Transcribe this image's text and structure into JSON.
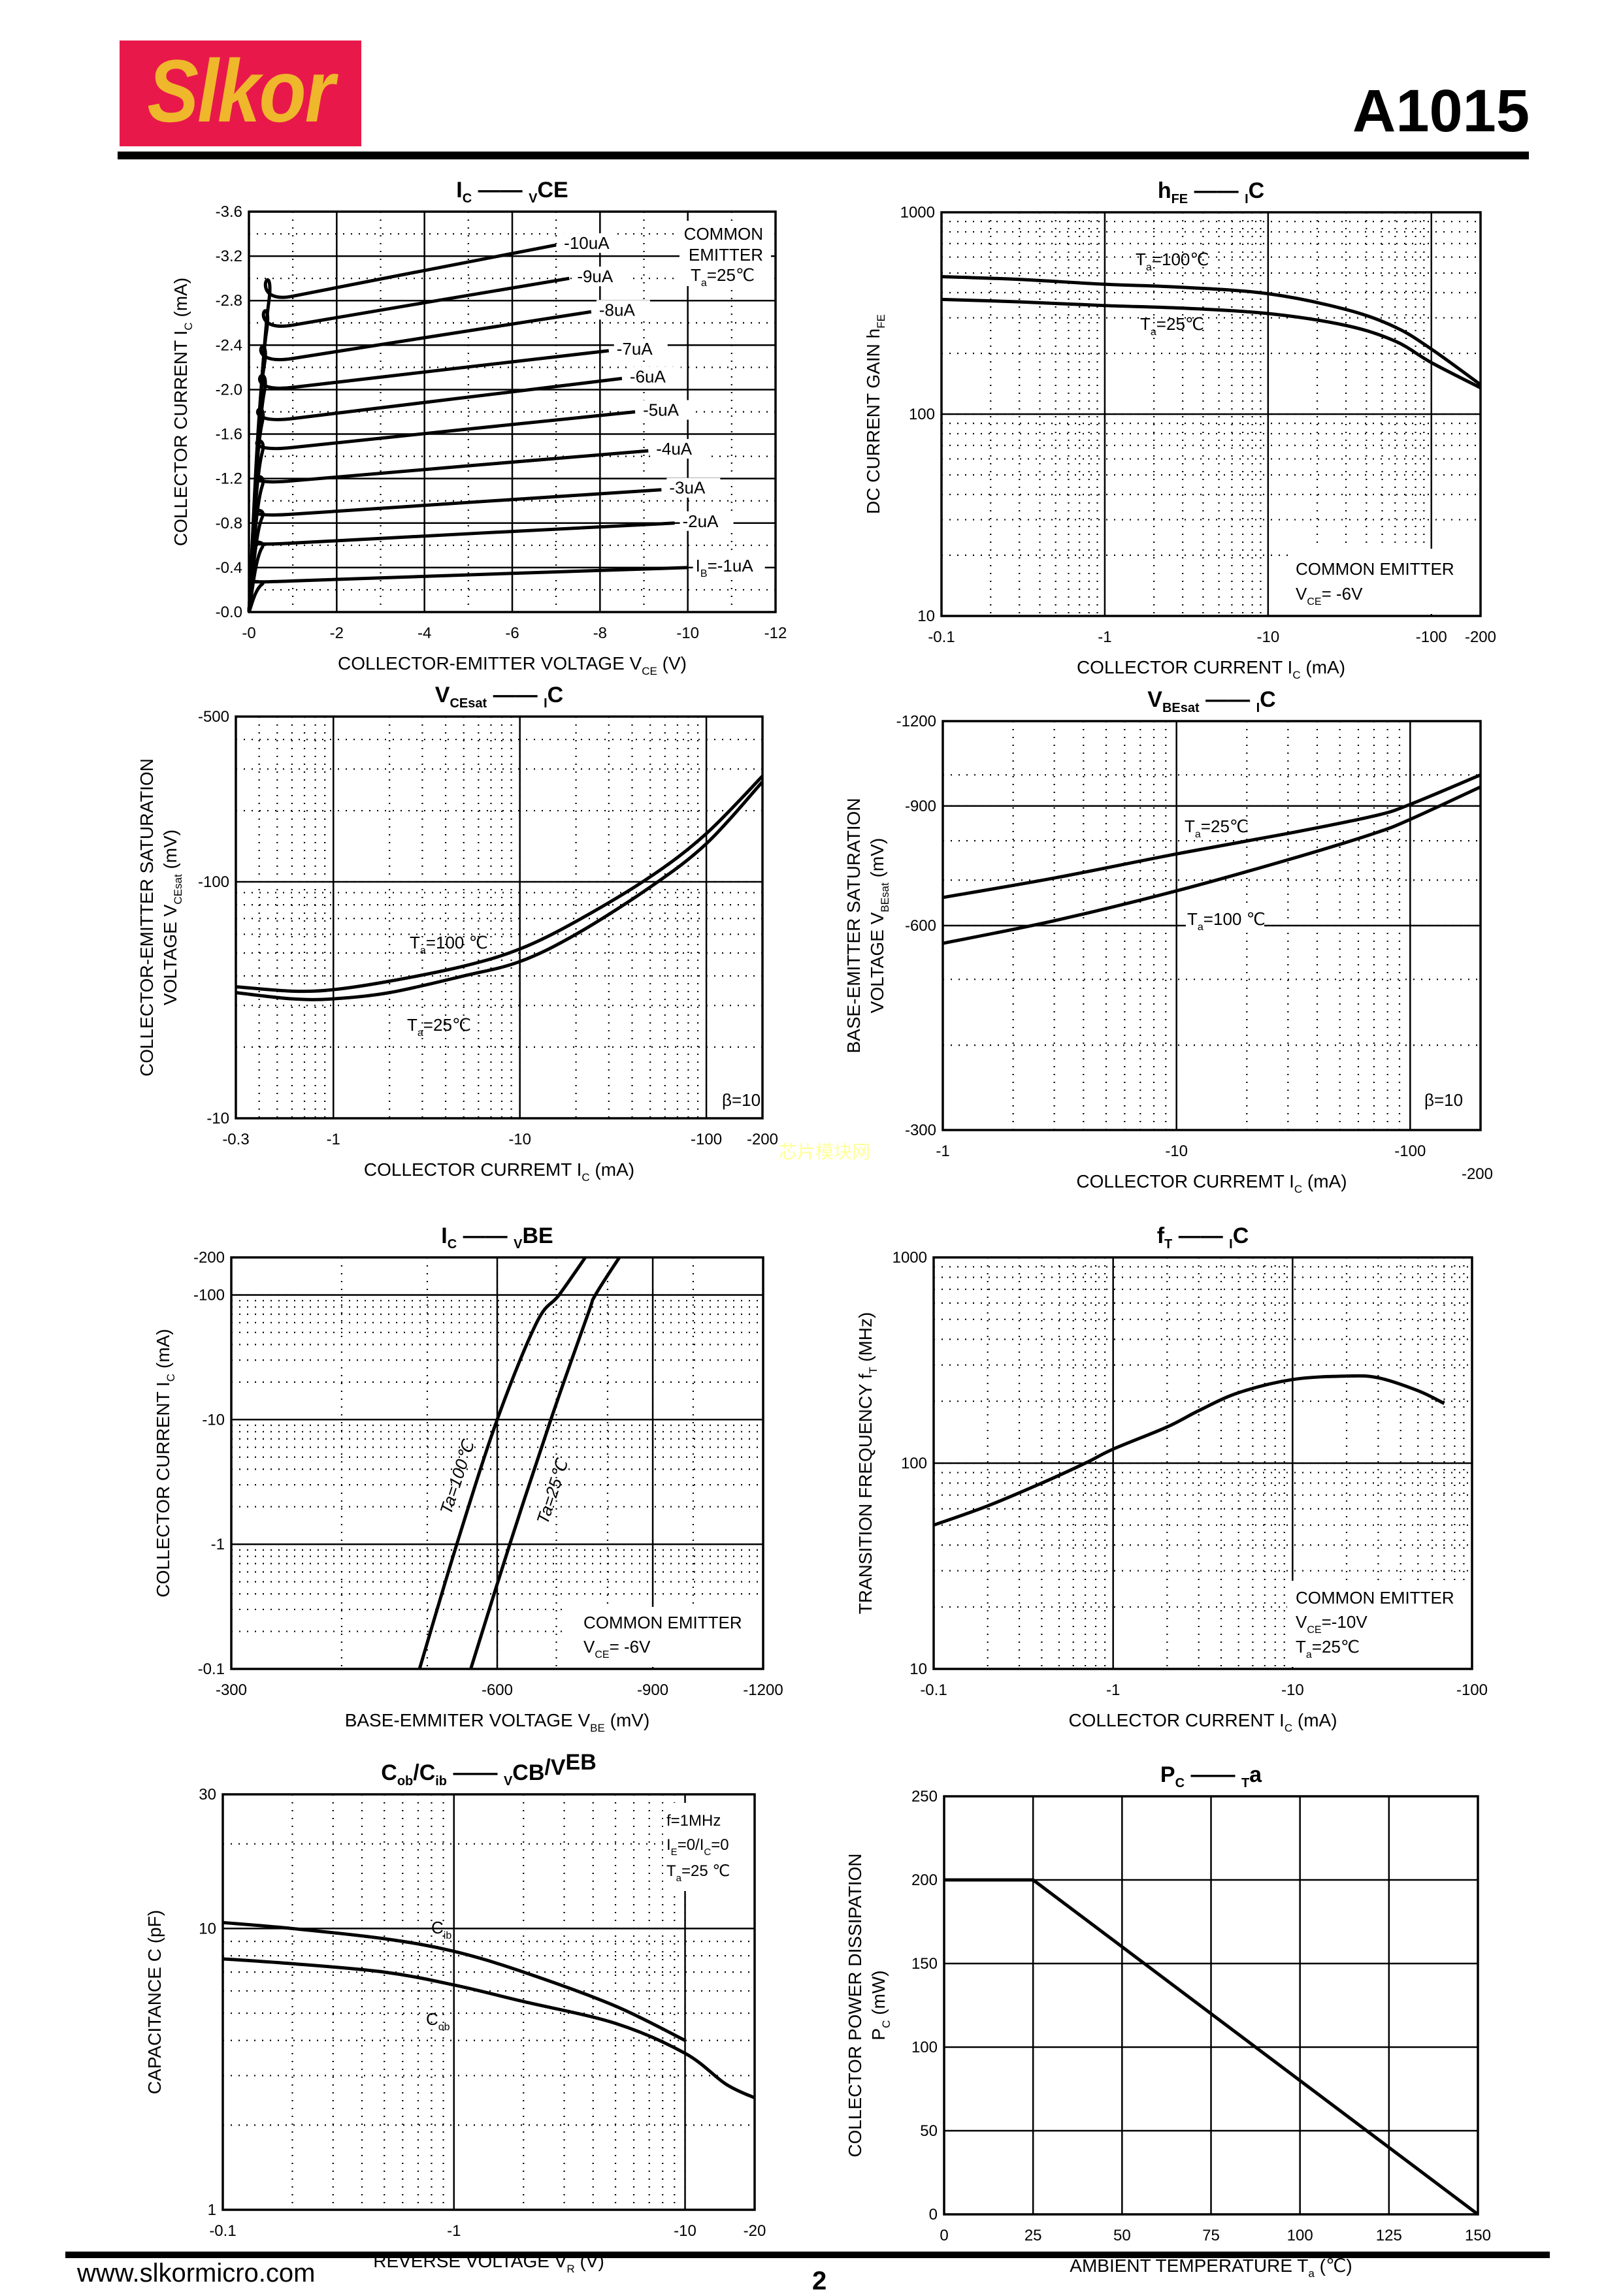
{
  "header": {
    "logo_text": "Slkor",
    "part_number": "A1015"
  },
  "footer": {
    "url": "www.slkormicro.com",
    "page": "2"
  },
  "watermark": "芯片模块网",
  "colors": {
    "logo_bg": "#e8194a",
    "logo_text": "#efb72c",
    "watermark": "#ffff99"
  },
  "chart_data": [
    {
      "id": "ic-vce",
      "type": "line",
      "title": [
        "I",
        "C",
        " —— ",
        "V",
        "CE"
      ],
      "xlabel": "COLLECTOR-EMITTER VOLTAGE    V",
      "xlabel_sub": "CE",
      "xlabel_unit": "(V)",
      "ylabel": "COLLECTOR CURRENT    I",
      "ylabel_sub": "C",
      "ylabel_unit": "(mA)",
      "xscale": "linear",
      "yscale": "linear",
      "xlim": [
        0,
        -12
      ],
      "ylim": [
        0,
        -3.6
      ],
      "xticks": [
        0,
        -2,
        -4,
        -6,
        -8,
        -10,
        -12
      ],
      "xtick_labels": [
        "-0",
        "-2",
        "-4",
        "-6",
        "-8",
        "-10",
        "-12"
      ],
      "yticks": [
        0,
        -0.4,
        -0.8,
        -1.2,
        -1.6,
        -2.0,
        -2.4,
        -2.8,
        -3.2,
        -3.6
      ],
      "ytick_labels": [
        "-0.0",
        "-0.4",
        "-0.8",
        "-1.2",
        "-1.6",
        "-2.0",
        "-2.4",
        "-2.8",
        "-3.2",
        "-3.6"
      ],
      "annotations": [
        "COMMON",
        "EMITTER",
        "T_a=25℃"
      ],
      "series": [
        {
          "name": "I_B=-1uA",
          "label": "-1uA",
          "x": [
            0,
            -0.3,
            -1,
            -10
          ],
          "y": [
            0,
            -0.25,
            -0.28,
            -0.4
          ]
        },
        {
          "name": "-2uA",
          "label": "-2uA",
          "x": [
            0,
            -0.3,
            -1,
            -9.7
          ],
          "y": [
            0,
            -0.58,
            -0.62,
            -0.8
          ]
        },
        {
          "name": "-3uA",
          "label": "-3uA",
          "x": [
            0,
            -0.3,
            -1,
            -9.4
          ],
          "y": [
            0,
            -0.85,
            -0.88,
            -1.1
          ]
        },
        {
          "name": "-4uA",
          "label": "-4uA",
          "x": [
            0,
            -0.3,
            -1,
            -9.1
          ],
          "y": [
            0,
            -1.13,
            -1.18,
            -1.45
          ]
        },
        {
          "name": "-5uA",
          "label": "-5uA",
          "x": [
            0,
            -0.3,
            -1,
            -8.8
          ],
          "y": [
            0,
            -1.43,
            -1.48,
            -1.8
          ]
        },
        {
          "name": "-6uA",
          "label": "-6uA",
          "x": [
            0,
            -0.3,
            -1,
            -8.5
          ],
          "y": [
            0,
            -1.7,
            -1.74,
            -2.1
          ]
        },
        {
          "name": "-7uA",
          "label": "-7uA",
          "x": [
            0,
            -0.35,
            -1,
            -8.2
          ],
          "y": [
            0,
            -1.98,
            -2.02,
            -2.35
          ]
        },
        {
          "name": "-8uA",
          "label": "-8uA",
          "x": [
            0,
            -0.35,
            -1,
            -7.8
          ],
          "y": [
            0,
            -2.22,
            -2.28,
            -2.7
          ]
        },
        {
          "name": "-9uA",
          "label": "-9uA",
          "x": [
            0,
            -0.4,
            -1,
            -7.3
          ],
          "y": [
            0,
            -2.52,
            -2.58,
            -3.0
          ]
        },
        {
          "name": "-10uA",
          "label": "-10uA",
          "x": [
            0,
            -0.45,
            -1,
            -7.0
          ],
          "y": [
            0,
            -2.78,
            -2.84,
            -3.3
          ]
        }
      ],
      "ib_prefix": "I",
      "ib_sub": "B"
    },
    {
      "id": "hfe-ic",
      "type": "line",
      "title": [
        "h",
        "FE",
        " —— ",
        "I",
        "C"
      ],
      "xlabel": "COLLECTOR CURRENT    I",
      "xlabel_sub": "C",
      "xlabel_unit": "(mA)",
      "ylabel": "DC CURRENT GAIN    h",
      "ylabel_sub": "FE",
      "ylabel_unit": "",
      "xscale": "log",
      "yscale": "log",
      "xlim": [
        0.1,
        200
      ],
      "ylim": [
        10,
        1000
      ],
      "xticks": [
        0.1,
        1,
        10,
        100,
        200
      ],
      "xtick_labels": [
        "-0.1",
        "-1",
        "-10",
        "-100",
        "-200"
      ],
      "yticks": [
        10,
        100,
        1000
      ],
      "ytick_labels": [
        "10",
        "100",
        "1000"
      ],
      "annotations": [
        "COMMON EMITTER",
        "V_CE= -6V"
      ],
      "series": [
        {
          "name": "T_a=100℃",
          "x": [
            0.1,
            0.3,
            1,
            3,
            10,
            30,
            60,
            100,
            200
          ],
          "y": [
            480,
            465,
            440,
            425,
            395,
            330,
            270,
            210,
            140
          ]
        },
        {
          "name": "T_a=25℃",
          "x": [
            0.1,
            0.3,
            1,
            3,
            10,
            30,
            60,
            100,
            200
          ],
          "y": [
            370,
            360,
            345,
            335,
            315,
            275,
            230,
            180,
            135
          ]
        }
      ]
    },
    {
      "id": "vcesat-ic",
      "type": "line",
      "title": [
        "V",
        "CEsat",
        " —— ",
        "I",
        "C"
      ],
      "xlabel": "COLLECTOR CURREMT    I",
      "xlabel_sub": "C",
      "xlabel_unit": "(mA)",
      "ylabel": "COLLECTOR-EMITTER SATURATION",
      "ylabel2": "VOLTAGE    V",
      "ylabel_sub": "CEsat",
      "ylabel_unit": "(mV)",
      "xscale": "log",
      "yscale": "log",
      "xlim": [
        0.3,
        200
      ],
      "ylim": [
        10,
        500
      ],
      "xticks": [
        0.3,
        1,
        10,
        100,
        200
      ],
      "xtick_labels": [
        "-0.3",
        "-1",
        "-10",
        "-100",
        "-200"
      ],
      "yticks": [
        10,
        100,
        500
      ],
      "ytick_labels": [
        "-10",
        "-100",
        "-500"
      ],
      "annotations": [
        "β=10"
      ],
      "series": [
        {
          "name": "T_a=100 ℃",
          "x": [
            0.3,
            0.6,
            1,
            2,
            5,
            10,
            20,
            50,
            100,
            200
          ],
          "y": [
            36,
            34.5,
            35,
            38,
            44,
            52,
            68,
            105,
            160,
            280
          ]
        },
        {
          "name": "T_a=25℃",
          "x": [
            0.3,
            0.6,
            1,
            2,
            5,
            10,
            20,
            50,
            100,
            200
          ],
          "y": [
            34,
            32,
            32,
            34,
            40,
            46,
            60,
            95,
            145,
            265
          ]
        }
      ]
    },
    {
      "id": "vbesat-ic",
      "type": "line",
      "title": [
        "V",
        "BEsat",
        " —— ",
        "I",
        "C"
      ],
      "xlabel": "COLLECTOR CURREMT    I",
      "xlabel_sub": "C",
      "xlabel_unit": "(mA)",
      "ylabel": "BASE-EMITTER SATURATION",
      "ylabel2": "VOLTAGE    V",
      "ylabel_sub": "BEsat",
      "ylabel_unit": "(mV)",
      "xscale": "log",
      "yscale": "log",
      "xlim": [
        1,
        200
      ],
      "ylim": [
        300,
        1200
      ],
      "xticks": [
        1,
        10,
        100
      ],
      "xtick_labels": [
        "-1",
        "-10",
        "-100"
      ],
      "x_extra_label": "-200",
      "yticks": [
        300,
        600,
        900,
        1200
      ],
      "ytick_labels": [
        "-300",
        "-600",
        "-900",
        "-1200"
      ],
      "annotations": [
        "β=10"
      ],
      "series": [
        {
          "name": "T_a=25℃",
          "x": [
            1,
            3,
            10,
            30,
            70,
            100,
            200
          ],
          "y": [
            660,
            705,
            765,
            820,
            870,
            905,
            1000
          ]
        },
        {
          "name": "T_a=100 ℃",
          "x": [
            1,
            3,
            10,
            30,
            70,
            100,
            200
          ],
          "y": [
            565,
            610,
            675,
            750,
            820,
            860,
            960
          ]
        }
      ]
    },
    {
      "id": "ic-vbe",
      "type": "line",
      "title": [
        "I",
        "C",
        " —— ",
        "V",
        "BE"
      ],
      "xlabel": "BASE-EMMITER VOLTAGE   V",
      "xlabel_sub": "BE",
      "xlabel_unit": "(mV)",
      "ylabel": "COLLECTOR CURRENT    I",
      "ylabel_sub": "C",
      "ylabel_unit": "(mA)",
      "xscale": "log",
      "yscale": "log",
      "xlim": [
        300,
        1200
      ],
      "ylim": [
        0.1,
        200
      ],
      "xticks": [
        300,
        600,
        900,
        1200
      ],
      "xtick_labels": [
        "-300",
        "-600",
        "-900",
        "-1200"
      ],
      "yticks": [
        0.1,
        1,
        10,
        100,
        200
      ],
      "ytick_labels": [
        "-0.1",
        "-1",
        "-10",
        "-100",
        "-200"
      ],
      "annotations": [
        "COMMON EMITTER",
        "V_CE= -6V"
      ],
      "series": [
        {
          "name": "Ta=100℃",
          "x": [
            490,
            540,
            600,
            665,
            705,
            755
          ],
          "y": [
            0.1,
            1,
            10,
            60,
            100,
            200
          ]
        },
        {
          "name": "Ta=25℃",
          "x": [
            560,
            620,
            690,
            760,
            775,
            825
          ],
          "y": [
            0.1,
            1,
            10,
            70,
            100,
            200
          ]
        }
      ]
    },
    {
      "id": "ft-ic",
      "type": "line",
      "title": [
        "f",
        "T",
        " —— ",
        "I",
        "C"
      ],
      "xlabel": "COLLECTOR CURRENT    I",
      "xlabel_sub": "C",
      "xlabel_unit": "(mA)",
      "ylabel": "TRANSITION FREQUENCY    f",
      "ylabel_sub": "T",
      "ylabel_unit": "(MHz)",
      "xscale": "log",
      "yscale": "log",
      "xlim": [
        0.1,
        100
      ],
      "ylim": [
        10,
        1000
      ],
      "xticks": [
        0.1,
        1,
        10,
        100
      ],
      "xtick_labels": [
        "-0.1",
        "-1",
        "-10",
        "-100"
      ],
      "yticks": [
        10,
        100,
        1000
      ],
      "ytick_labels": [
        "10",
        "100",
        "1000"
      ],
      "annotations": [
        "COMMON EMITTER",
        "V_CE=-10V",
        "T_a=25℃"
      ],
      "series": [
        {
          "name": "fT",
          "x": [
            0.1,
            0.2,
            0.4,
            0.7,
            1,
            2,
            3,
            5,
            10,
            20,
            30,
            50,
            70
          ],
          "y": [
            50,
            62,
            80,
            100,
            117,
            150,
            180,
            220,
            255,
            265,
            260,
            225,
            195
          ]
        }
      ]
    },
    {
      "id": "cob-cib-vcb-veb",
      "type": "line",
      "title": [
        "C",
        "ob",
        "/C",
        "ib",
        " —— ",
        "V",
        "CB",
        "/V",
        "EB"
      ],
      "xlabel": "REVERSE  VOLTAGE    V",
      "xlabel_sub": "R",
      "xlabel_unit": "(V)",
      "ylabel": "CAPACITANCE    C",
      "ylabel_sub": "",
      "ylabel_unit": "(pF)",
      "xscale": "log",
      "yscale": "log",
      "xlim": [
        0.1,
        20
      ],
      "ylim": [
        1,
        30
      ],
      "xticks": [
        0.1,
        1,
        10,
        20
      ],
      "xtick_labels": [
        "-0.1",
        "-1",
        "-10",
        "-20"
      ],
      "yticks": [
        1,
        10,
        30
      ],
      "ytick_labels": [
        "1",
        "10",
        "30"
      ],
      "annotations": [
        "f=1MHz",
        "I_E=0/I_C=0",
        "T_a=25 ℃"
      ],
      "series": [
        {
          "name": "C_ib",
          "x": [
            0.1,
            0.2,
            0.5,
            1,
            2,
            5,
            10
          ],
          "y": [
            10.5,
            10.0,
            9.2,
            8.3,
            7.0,
            5.3,
            4.0
          ]
        },
        {
          "name": "C_ob",
          "x": [
            0.1,
            0.2,
            0.5,
            1,
            2,
            5,
            10,
            15,
            20
          ],
          "y": [
            7.8,
            7.5,
            7.0,
            6.3,
            5.5,
            4.6,
            3.6,
            2.8,
            2.5
          ]
        }
      ]
    },
    {
      "id": "pc-ta",
      "type": "line",
      "title": [
        "P",
        "C",
        " —— ",
        "T",
        "a"
      ],
      "xlabel": "AMBIENT TEMPERATURE    T",
      "xlabel_sub": "a",
      "xlabel_unit": "(℃)",
      "ylabel": "COLLECTOR POWER DISSIPATION",
      "ylabel2": "P",
      "ylabel_sub": "C",
      "ylabel_unit": "(mW)",
      "xscale": "linear",
      "yscale": "linear",
      "xlim": [
        0,
        150
      ],
      "ylim": [
        0,
        250
      ],
      "xticks": [
        0,
        25,
        50,
        75,
        100,
        125,
        150
      ],
      "xtick_labels": [
        "0",
        "25",
        "50",
        "75",
        "100",
        "125",
        "150"
      ],
      "yticks": [
        0,
        50,
        100,
        150,
        200,
        250
      ],
      "ytick_labels": [
        "0",
        "50",
        "100",
        "150",
        "200",
        "250"
      ],
      "annotations": [],
      "series": [
        {
          "name": "Pc",
          "x": [
            0,
            25,
            150
          ],
          "y": [
            200,
            200,
            0
          ]
        }
      ]
    }
  ]
}
